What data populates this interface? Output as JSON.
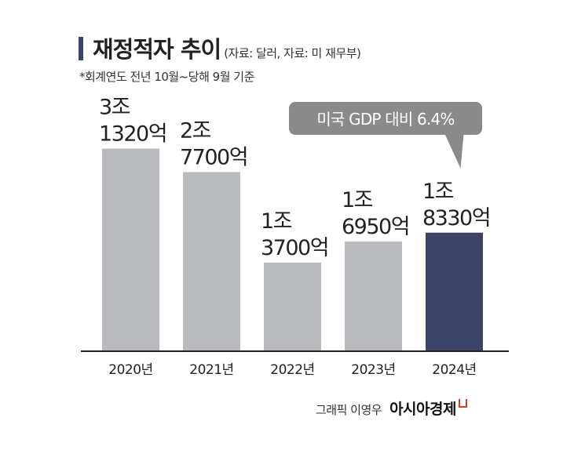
{
  "header": {
    "title": "재정적자 추이",
    "source": "(자료: 달러, 자료: 미 재무부)",
    "note": "*회계연도 전년 10월~당해 9월 기준"
  },
  "chart_data": {
    "type": "bar",
    "title": "재정적자 추이",
    "xlabel": "",
    "ylabel": "",
    "unit": "억 달러",
    "categories": [
      "2020년",
      "2021년",
      "2022년",
      "2023년",
      "2024년"
    ],
    "values": [
      31320,
      27700,
      13700,
      16950,
      18330
    ],
    "value_labels": [
      [
        "3조",
        "1320억"
      ],
      [
        "2조",
        "7700억"
      ],
      [
        "1조",
        "3700억"
      ],
      [
        "1조",
        "6950억"
      ],
      [
        "1조",
        "8330억"
      ]
    ],
    "ylim": [
      0,
      40000
    ],
    "grid": false,
    "legend": "none",
    "highlight_index": 4,
    "annotation": {
      "text": "미국 GDP 대비 6.4%",
      "target_index": 4
    },
    "colors": {
      "bar": "#b9babd",
      "highlight": "#3b4467",
      "callout": "#8a8a8a",
      "callout_text": "#ffffff",
      "axis": "#222222",
      "label": "#222222"
    }
  },
  "footer": {
    "credit": "그래픽 이영우",
    "brand": "아시아경제"
  }
}
